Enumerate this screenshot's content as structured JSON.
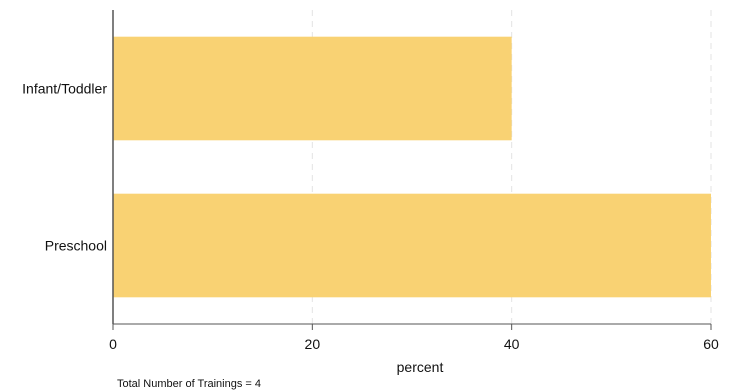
{
  "chart_data": {
    "type": "bar",
    "orientation": "horizontal",
    "categories": [
      "Infant/Toddler",
      "Preschool"
    ],
    "values": [
      40,
      60
    ],
    "xlabel": "percent",
    "ylabel": "",
    "xlim": [
      0,
      60
    ],
    "xticks": [
      0,
      20,
      40,
      60
    ],
    "grid": "vertical dashed",
    "bar_color": "#F9D273",
    "note": "Total Number of Trainings = 4"
  }
}
